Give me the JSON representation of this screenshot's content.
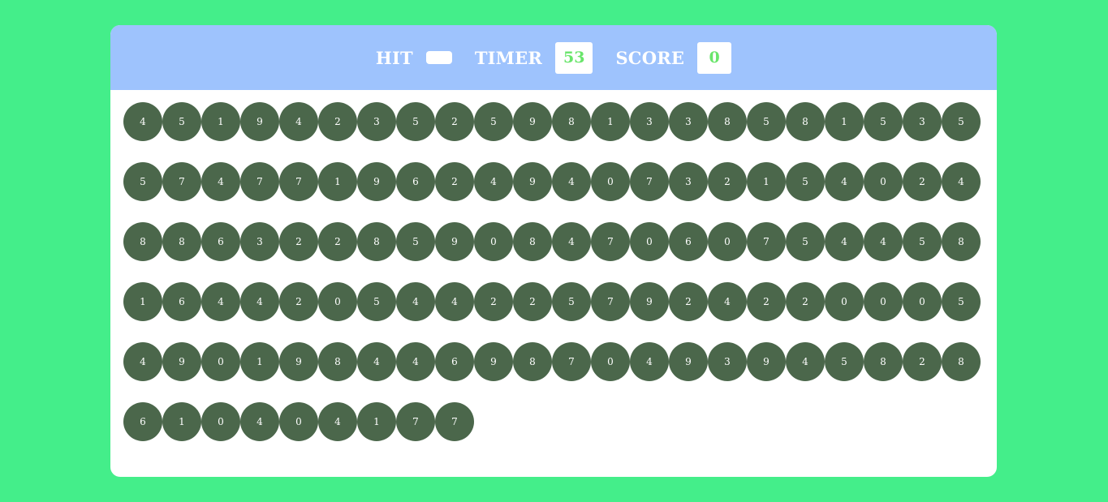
{
  "top_bar": {
    "hit_label": "HIT",
    "hit_value": "",
    "timer_label": "TIMER",
    "timer_value": "53",
    "score_label": "SCORE",
    "score_value": "0"
  },
  "colors": {
    "background": "#44ee8a",
    "header": "#9ec3fd",
    "bubble": "#4b674b",
    "value_text": "#69e56b"
  },
  "bubbles": [
    "4",
    "5",
    "1",
    "9",
    "4",
    "2",
    "3",
    "5",
    "2",
    "5",
    "9",
    "8",
    "1",
    "3",
    "3",
    "8",
    "5",
    "8",
    "1",
    "5",
    "3",
    "5",
    "5",
    "7",
    "4",
    "7",
    "7",
    "1",
    "9",
    "6",
    "2",
    "4",
    "9",
    "4",
    "0",
    "7",
    "3",
    "2",
    "1",
    "5",
    "4",
    "0",
    "2",
    "4",
    "8",
    "8",
    "6",
    "3",
    "2",
    "2",
    "8",
    "5",
    "9",
    "0",
    "8",
    "4",
    "7",
    "0",
    "6",
    "0",
    "7",
    "5",
    "4",
    "4",
    "5",
    "8",
    "1",
    "6",
    "4",
    "4",
    "2",
    "0",
    "5",
    "4",
    "4",
    "2",
    "2",
    "5",
    "7",
    "9",
    "2",
    "4",
    "2",
    "2",
    "0",
    "0",
    "0",
    "5",
    "4",
    "9",
    "0",
    "1",
    "9",
    "8",
    "4",
    "4",
    "6",
    "9",
    "8",
    "7",
    "0",
    "4",
    "9",
    "3",
    "9",
    "4",
    "5",
    "8",
    "2",
    "8",
    "6",
    "1",
    "0",
    "4",
    "0",
    "4",
    "1",
    "7",
    "7"
  ]
}
